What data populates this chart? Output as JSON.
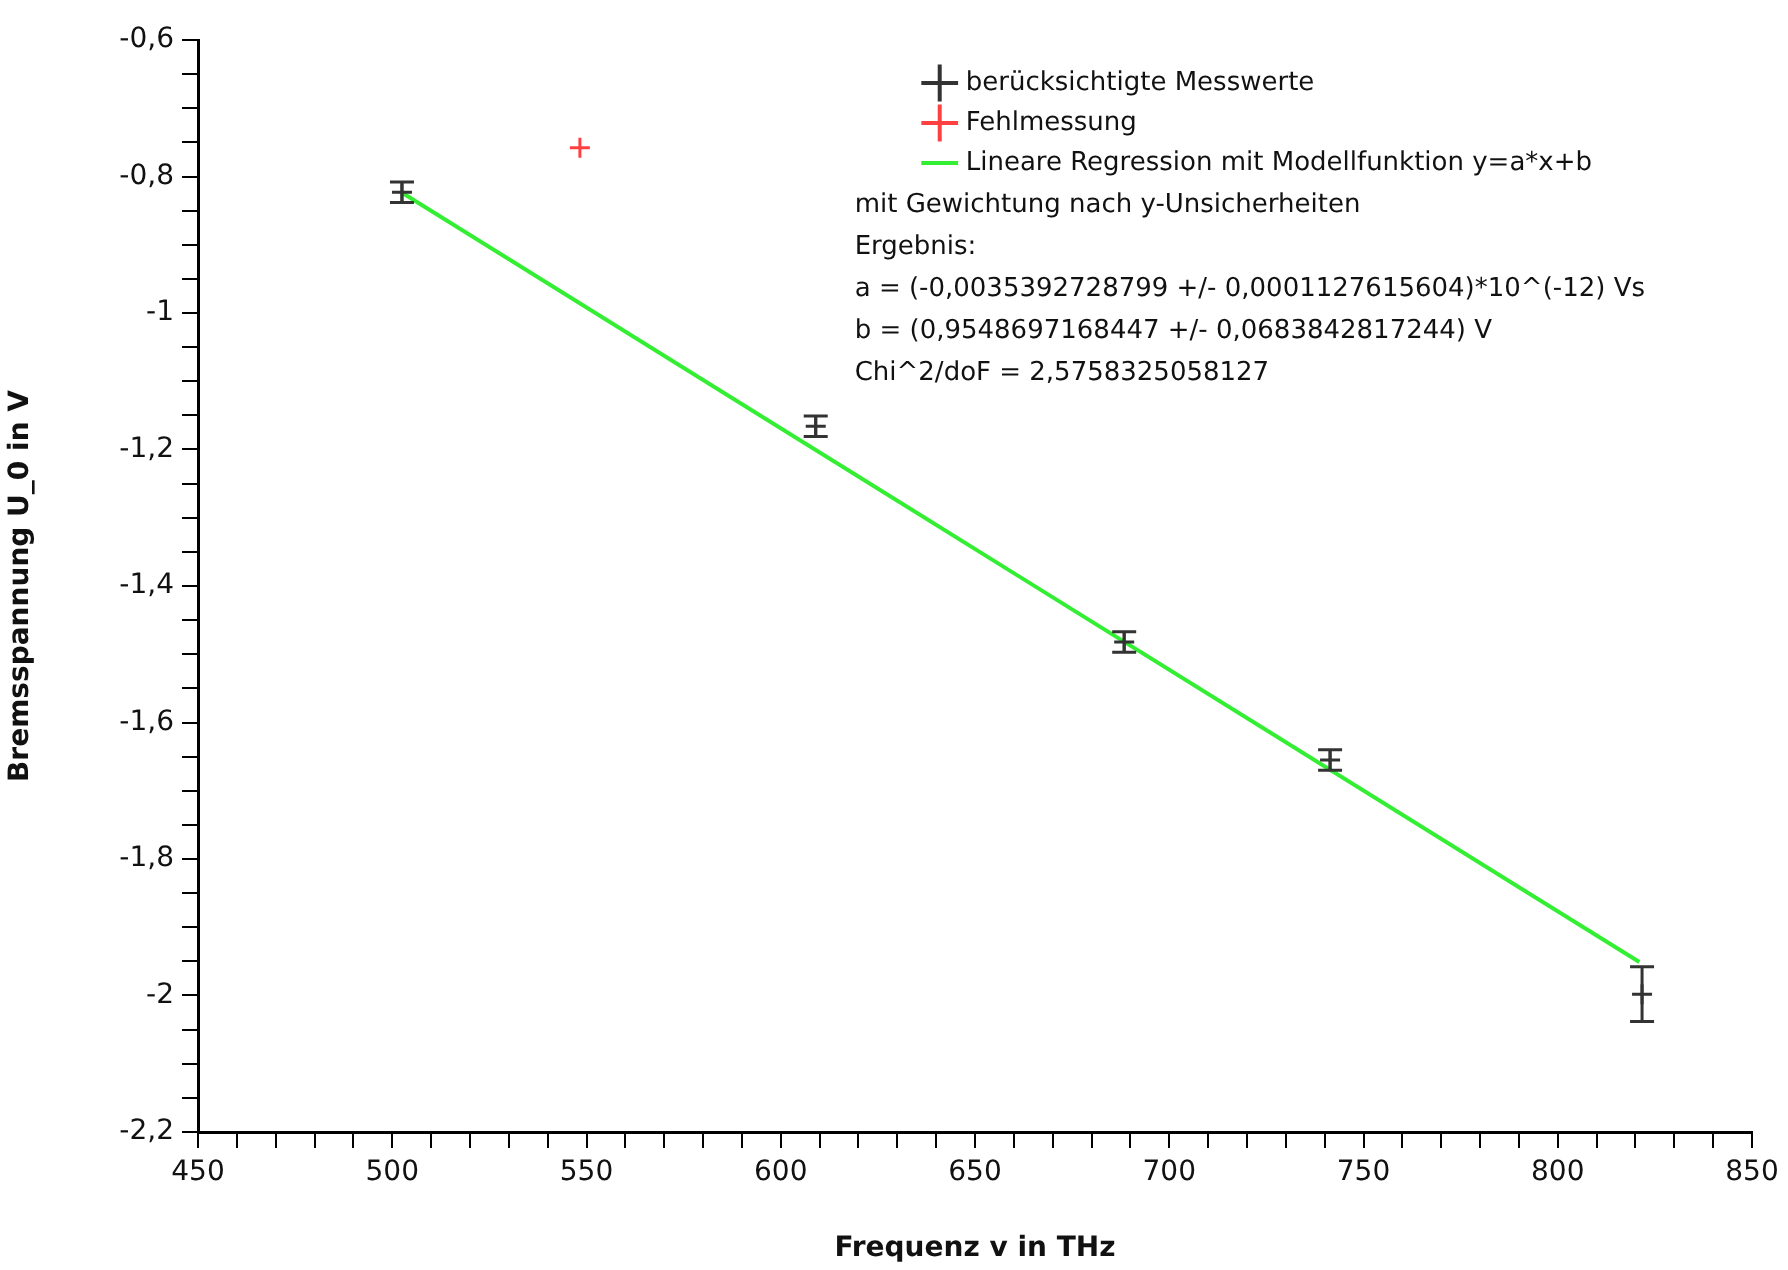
{
  "chart_data": {
    "type": "scatter",
    "xlabel": "Frequenz v in THz",
    "ylabel": "Bremsspannung U_0 in V",
    "marker": "cross",
    "legend": "top right",
    "xlim": [
      450,
      850
    ],
    "ylim": [
      -2.2,
      -0.6
    ],
    "xticks": [
      450,
      {
        "value": 460,
        "label": null
      },
      {
        "value": 470,
        "label": null
      },
      {
        "value": 480,
        "label": null
      },
      {
        "value": 490,
        "label": null
      },
      500,
      {
        "value": 510,
        "label": null
      },
      {
        "value": 520,
        "label": null
      },
      {
        "value": 530,
        "label": null
      },
      {
        "value": 540,
        "label": null
      },
      550,
      {
        "value": 560,
        "label": null
      },
      {
        "value": 570,
        "label": null
      },
      {
        "value": 580,
        "label": null
      },
      {
        "value": 590,
        "label": null
      },
      600,
      {
        "value": 610,
        "label": null
      },
      {
        "value": 620,
        "label": null
      },
      {
        "value": 630,
        "label": null
      },
      {
        "value": 640,
        "label": null
      },
      650,
      {
        "value": 660,
        "label": null
      },
      {
        "value": 670,
        "label": null
      },
      {
        "value": 680,
        "label": null
      },
      {
        "value": 690,
        "label": null
      },
      700,
      {
        "value": 710,
        "label": null
      },
      {
        "value": 720,
        "label": null
      },
      {
        "value": 730,
        "label": null
      },
      {
        "value": 740,
        "label": null
      },
      750,
      {
        "value": 760,
        "label": null
      },
      {
        "value": 770,
        "label": null
      },
      {
        "value": 780,
        "label": null
      },
      {
        "value": 790,
        "label": null
      },
      800,
      {
        "value": 810,
        "label": null
      },
      {
        "value": 820,
        "label": null
      },
      {
        "value": 830,
        "label": null
      },
      {
        "value": 840,
        "label": null
      },
      850
    ],
    "yticks": [
      {
        "value": -2.2,
        "label": "-2,2"
      },
      {
        "value": -2.15,
        "label": null
      },
      {
        "value": -2.1,
        "label": null
      },
      {
        "value": -2.05,
        "label": null
      },
      -2,
      {
        "value": -1.95,
        "label": null
      },
      {
        "value": -1.9,
        "label": null
      },
      {
        "value": -1.85,
        "label": null
      },
      {
        "value": -1.8,
        "label": "-1,8"
      },
      {
        "value": -1.75,
        "label": null
      },
      {
        "value": -1.7,
        "label": null
      },
      {
        "value": -1.65,
        "label": null
      },
      {
        "value": -1.6,
        "label": "-1,6"
      },
      {
        "value": -1.55,
        "label": null
      },
      {
        "value": -1.5,
        "label": null
      },
      {
        "value": -1.45,
        "label": null
      },
      {
        "value": -1.4,
        "label": "-1,4"
      },
      {
        "value": -1.35,
        "label": null
      },
      {
        "value": -1.3,
        "label": null
      },
      {
        "value": -1.25,
        "label": null
      },
      {
        "value": -1.2,
        "label": "-1,2"
      },
      {
        "value": -1.15,
        "label": null
      },
      {
        "value": -1.1,
        "label": null
      },
      {
        "value": -1.05,
        "label": null
      },
      -1,
      {
        "value": -0.95,
        "label": null
      },
      {
        "value": -0.9,
        "label": null
      },
      {
        "value": -0.85,
        "label": null
      },
      {
        "value": -0.8,
        "label": "-0,8"
      },
      {
        "value": -0.75,
        "label": null
      },
      {
        "value": -0.7,
        "label": null
      },
      {
        "value": -0.65,
        "label": null
      },
      {
        "value": -0.6,
        "label": "-0,6"
      }
    ],
    "series": [
      {
        "name": "berücksichtigte Messwerte",
        "color": "#333333",
        "x": [
          502.5,
          609,
          688.4,
          741.4,
          821.7
        ],
        "values": [
          -0.823,
          -1.166,
          -1.482,
          -1.655,
          -1.998
        ],
        "errors": [
          0.015,
          0.015,
          0.015,
          0.015,
          0.04
        ]
      },
      {
        "name": "Fehlmessung",
        "color": "#ff4040",
        "x": [
          548.3
        ],
        "values": [
          -0.758
        ]
      },
      {
        "name": "Lineare Regression mit Modellfunktion y=a*x+b",
        "type": "line",
        "color": "#33ee33",
        "x": [
          502,
          821
        ],
        "values": [
          -0.822,
          -1.951
        ]
      }
    ],
    "annotations": [
      "mit Gewichtung nach y-Unsicherheiten",
      "Ergebnis:",
      "a = (-0,0035392728799 +/- 0,0001127615604)*10^(-12) Vs",
      "b = (0,9548697168447 +/- 0,0683842817244) V",
      "Chi^2/doF = 2,5758325058127"
    ]
  }
}
